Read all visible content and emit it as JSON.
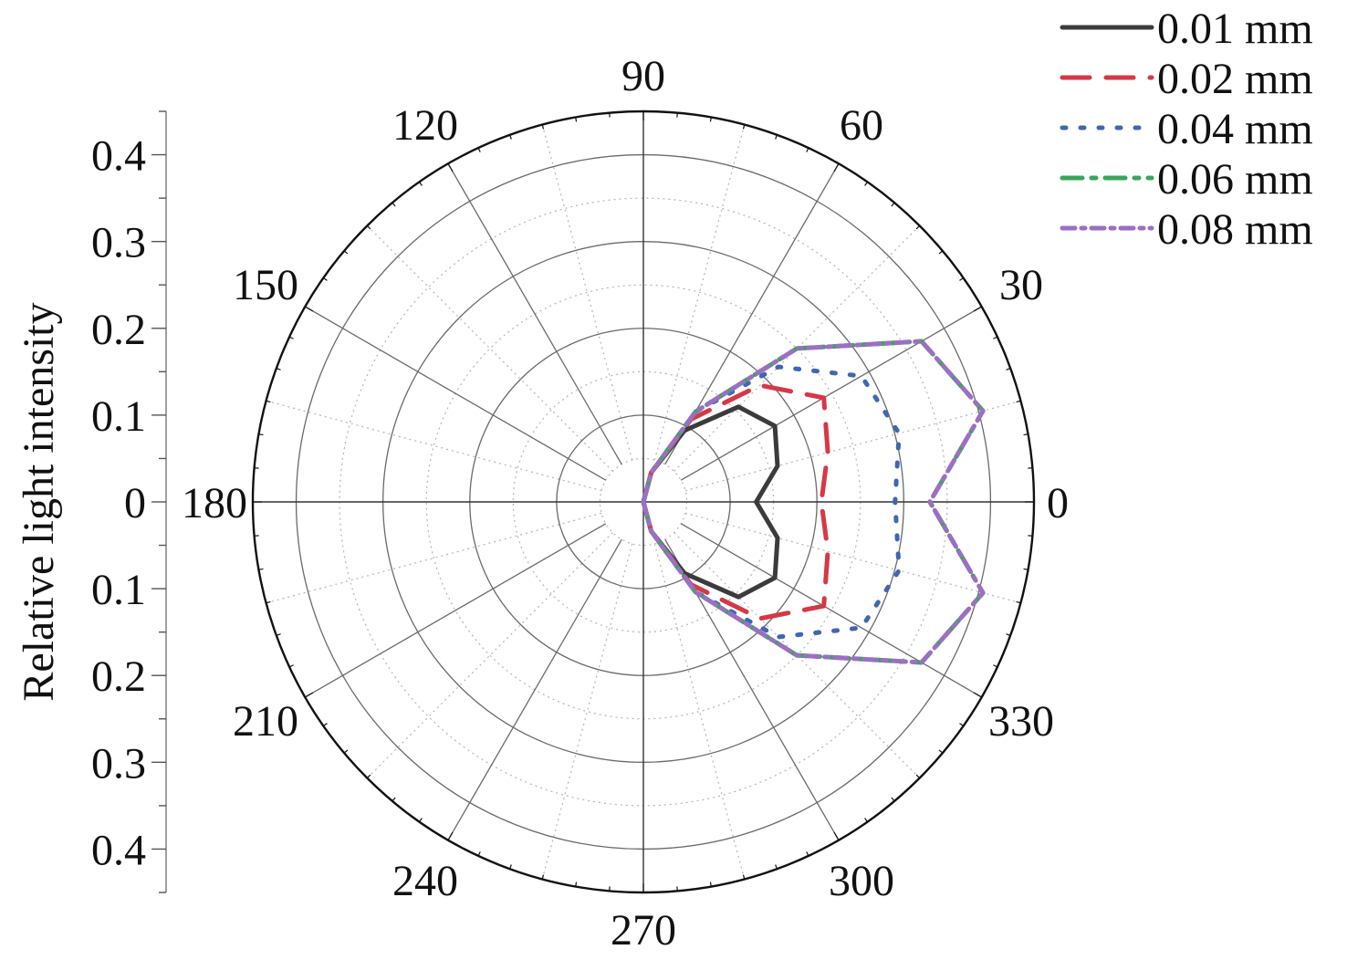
{
  "chart_data": {
    "type": "polar-line",
    "ylabel": "Relative light intensity",
    "radial_range": [
      0,
      0.45
    ],
    "radial_ticks": [
      0,
      0.1,
      0.2,
      0.3,
      0.4
    ],
    "radial_tick_labels": [
      "0",
      "0.1",
      "0.2",
      "0.3",
      "0.4"
    ],
    "angle_ticks": [
      0,
      30,
      60,
      90,
      120,
      150,
      180,
      210,
      240,
      270,
      300,
      330
    ],
    "angle_tick_labels": [
      "0",
      "30",
      "60",
      "90",
      "120",
      "150",
      "180",
      "210",
      "240",
      "270",
      "300",
      "330"
    ],
    "grid": true,
    "legend_position": "top-right",
    "angles": [
      -90,
      -75,
      -60,
      -45,
      -30,
      -15,
      0,
      15,
      30,
      45,
      60,
      75,
      90
    ],
    "series": [
      {
        "name": "0.01 mm",
        "color": "#3b3b3b",
        "dash": "solid",
        "values": [
          0.0,
          0.035,
          0.095,
          0.155,
          0.175,
          0.16,
          0.13,
          0.16,
          0.175,
          0.155,
          0.095,
          0.035,
          0.0
        ]
      },
      {
        "name": "0.02 mm",
        "color": "#d63845",
        "dash": "dash",
        "values": [
          0.0,
          0.035,
          0.11,
          0.19,
          0.24,
          0.22,
          0.205,
          0.22,
          0.24,
          0.19,
          0.11,
          0.035,
          0.0
        ]
      },
      {
        "name": "0.04 mm",
        "color": "#3f66b3",
        "dash": "dot",
        "values": [
          0.0,
          0.035,
          0.12,
          0.22,
          0.29,
          0.305,
          0.29,
          0.305,
          0.29,
          0.22,
          0.12,
          0.035,
          0.0
        ]
      },
      {
        "name": "0.06 mm",
        "color": "#3aa55a",
        "dash": "dashdot",
        "values": [
          0.0,
          0.035,
          0.12,
          0.25,
          0.37,
          0.405,
          0.33,
          0.405,
          0.37,
          0.25,
          0.12,
          0.035,
          0.0
        ]
      },
      {
        "name": "0.08 mm",
        "color": "#9b6fc4",
        "dash": "shortdashdot",
        "values": [
          0.0,
          0.035,
          0.12,
          0.25,
          0.37,
          0.405,
          0.33,
          0.405,
          0.37,
          0.25,
          0.12,
          0.035,
          0.0
        ]
      }
    ]
  }
}
